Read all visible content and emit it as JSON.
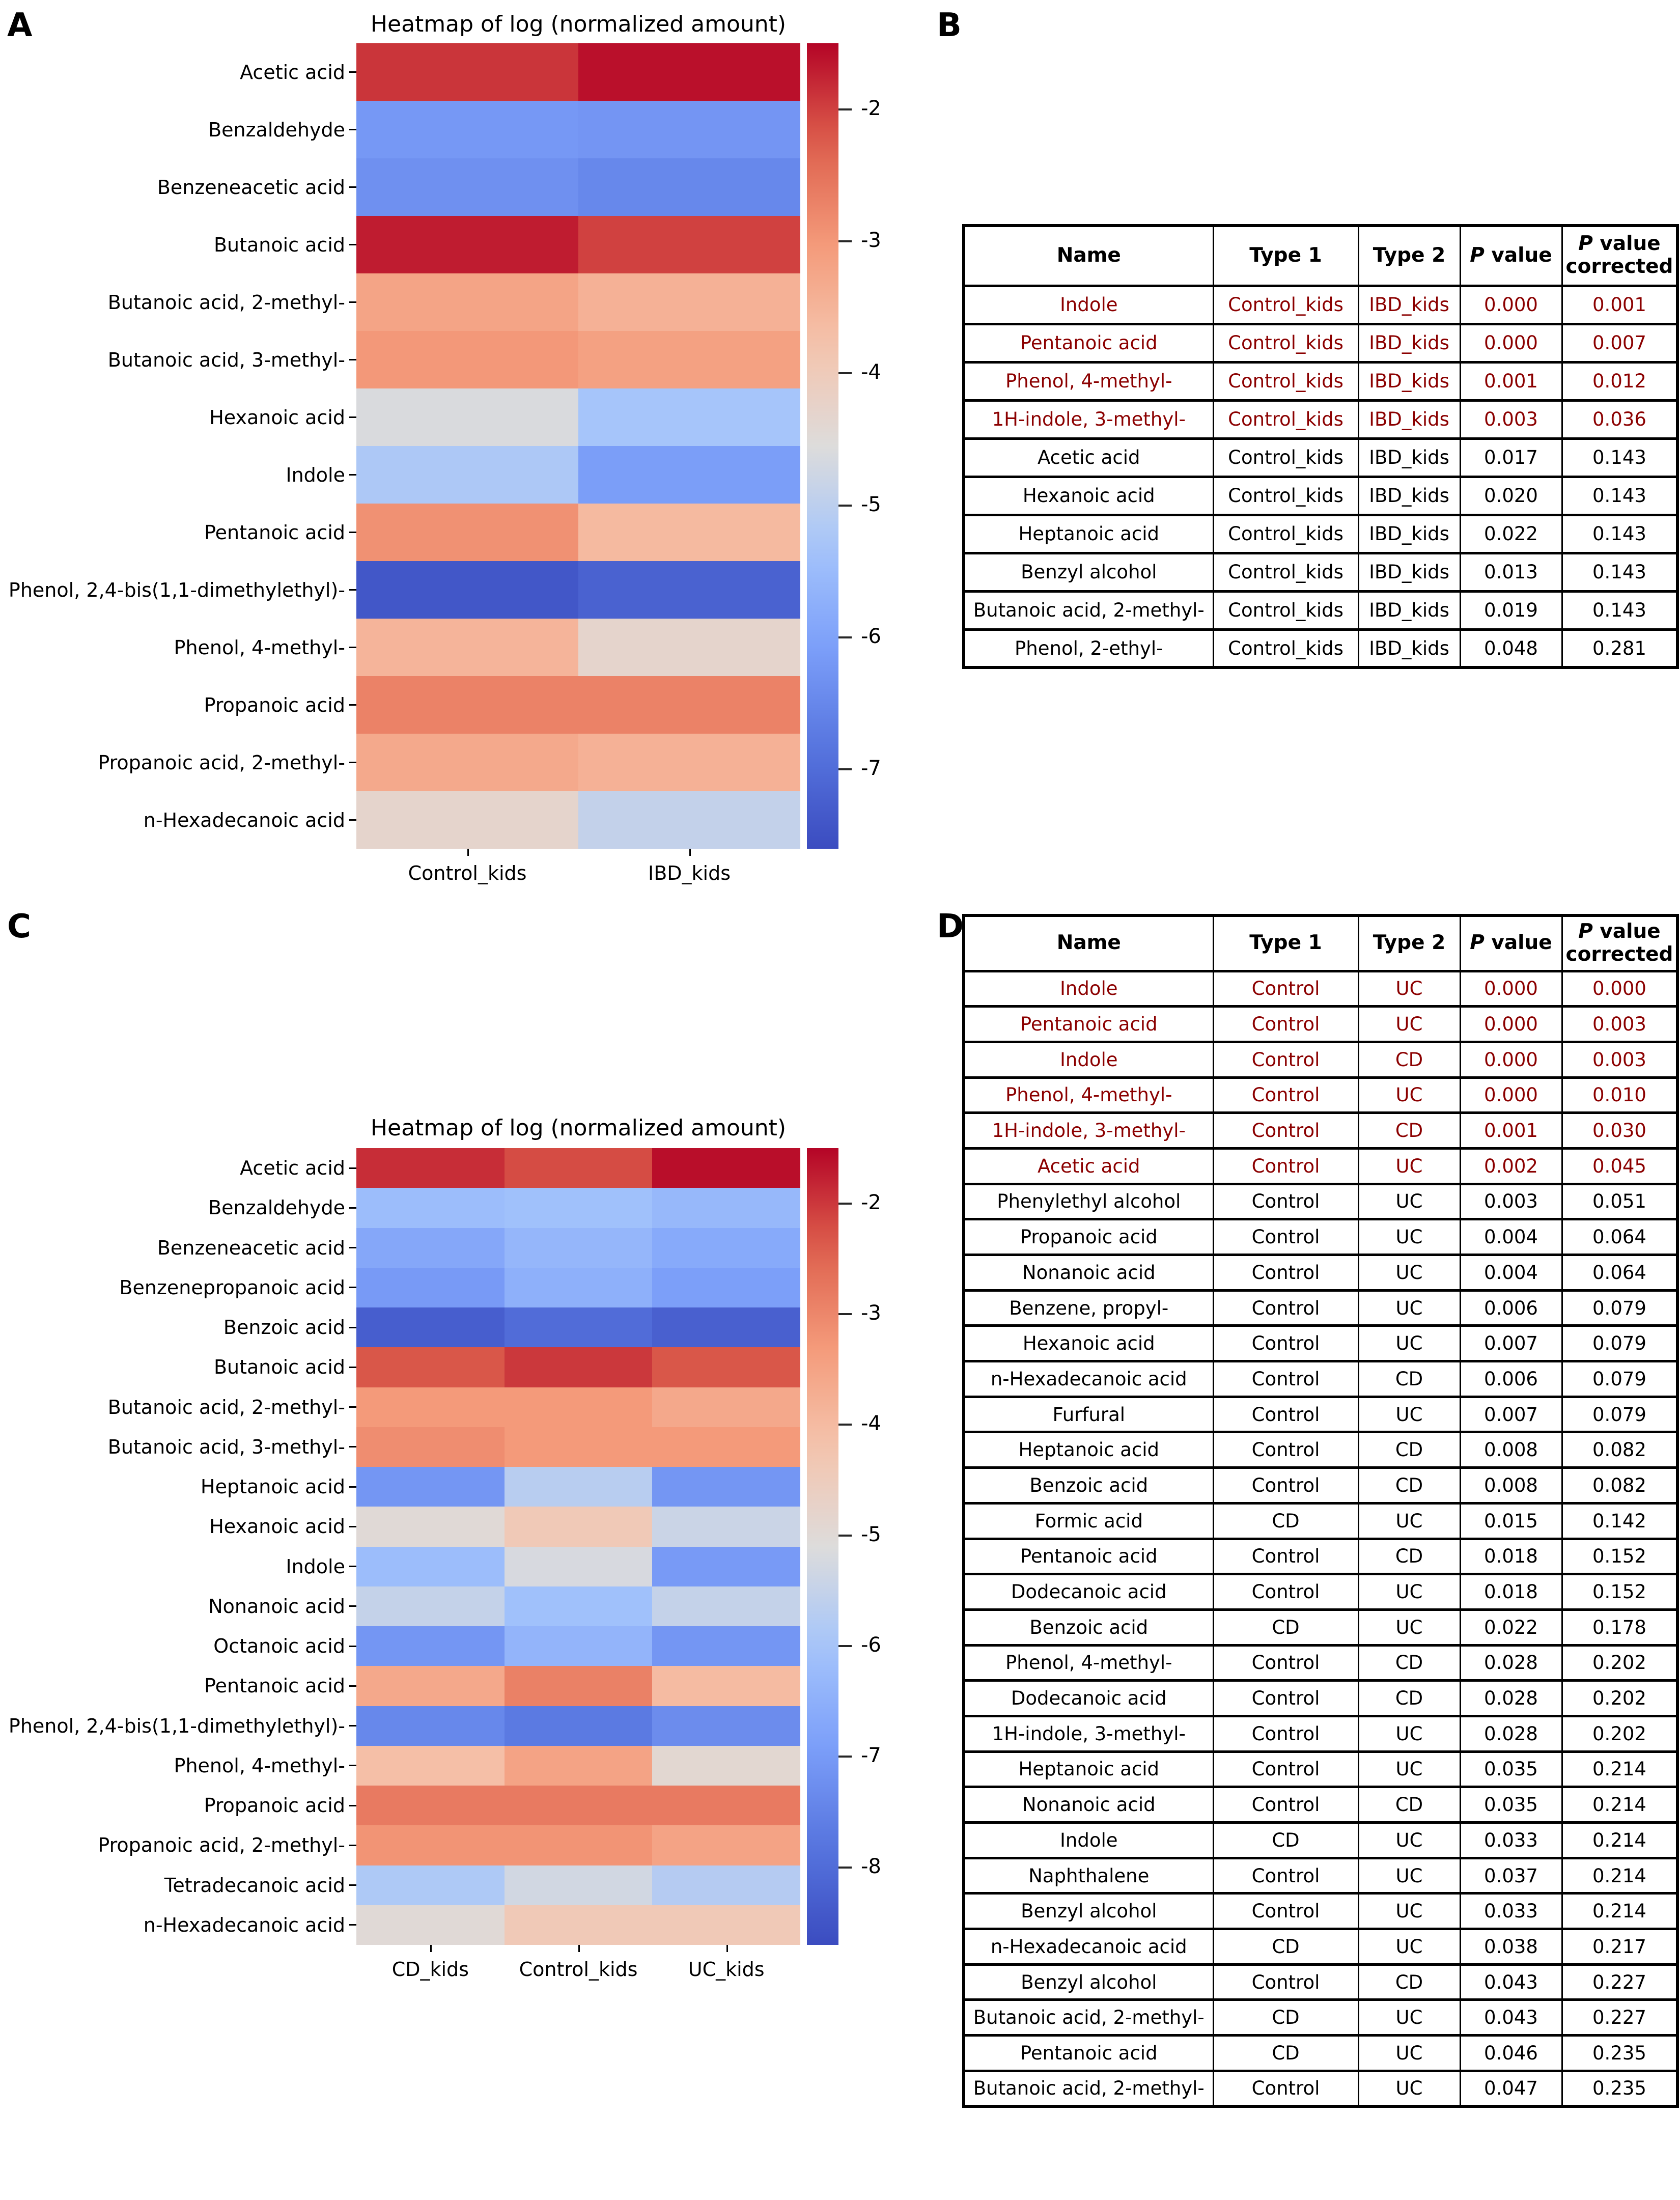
{
  "panels": {
    "A": {
      "letter": "A"
    },
    "B": {
      "letter": "B"
    },
    "C": {
      "letter": "C"
    },
    "D": {
      "letter": "D"
    }
  },
  "colors": {
    "highlight_text": "#8B0000",
    "table_border": "#000000",
    "background": "#ffffff"
  },
  "chart_data": [
    {
      "id": "heatmap-A",
      "panel": "A",
      "type": "heatmap",
      "title": "Heatmap of log (normalized amount)",
      "colormap": "coolwarm",
      "grid": false,
      "columns": [
        "Control_kids",
        "IBD_kids"
      ],
      "vmin": -7.6,
      "vmax": -1.5,
      "colorbar_ticks": [
        -2,
        -3,
        -4,
        -5,
        -6,
        -7
      ],
      "rows": [
        {
          "name": "Acetic acid",
          "values": [
            -1.9,
            -1.6
          ]
        },
        {
          "name": "Benzaldehyde",
          "values": [
            -6.2,
            -6.25
          ]
        },
        {
          "name": "Benzeneacetic acid",
          "values": [
            -6.35,
            -6.5
          ]
        },
        {
          "name": "Butanoic acid",
          "values": [
            -1.7,
            -2.0
          ]
        },
        {
          "name": "Butanoic acid, 2-methyl-",
          "values": [
            -3.2,
            -3.45
          ]
        },
        {
          "name": "Butanoic acid, 3-methyl-",
          "values": [
            -3.0,
            -3.15
          ]
        },
        {
          "name": "Hexanoic acid",
          "values": [
            -4.6,
            -5.3
          ]
        },
        {
          "name": "Indole",
          "values": [
            -5.2,
            -6.1
          ]
        },
        {
          "name": "Pentanoic acid",
          "values": [
            -2.9,
            -3.6
          ]
        },
        {
          "name": "Phenol, 2,4-bis(1,1-dimethylethyl)-",
          "values": [
            -7.4,
            -7.2
          ]
        },
        {
          "name": "Phenol, 4-methyl-",
          "values": [
            -3.5,
            -4.3
          ]
        },
        {
          "name": "Propanoic acid",
          "values": [
            -2.7,
            -2.7
          ]
        },
        {
          "name": "Propanoic acid, 2-methyl-",
          "values": [
            -3.3,
            -3.45
          ]
        },
        {
          "name": "n-Hexadecanoic acid",
          "values": [
            -4.3,
            -4.9
          ]
        }
      ]
    },
    {
      "id": "table-B",
      "panel": "B",
      "type": "table",
      "columns": [
        "Name",
        "Type 1",
        "Type 2",
        "P value",
        "P value corrected"
      ],
      "rows": [
        {
          "highlight": true,
          "cells": [
            "Indole",
            "Control_kids",
            "IBD_kids",
            "0.000",
            "0.001"
          ]
        },
        {
          "highlight": true,
          "cells": [
            "Pentanoic acid",
            "Control_kids",
            "IBD_kids",
            "0.000",
            "0.007"
          ]
        },
        {
          "highlight": true,
          "cells": [
            "Phenol, 4-methyl-",
            "Control_kids",
            "IBD_kids",
            "0.001",
            "0.012"
          ]
        },
        {
          "highlight": true,
          "cells": [
            "1H-indole, 3-methyl-",
            "Control_kids",
            "IBD_kids",
            "0.003",
            "0.036"
          ]
        },
        {
          "highlight": false,
          "cells": [
            "Acetic acid",
            "Control_kids",
            "IBD_kids",
            "0.017",
            "0.143"
          ]
        },
        {
          "highlight": false,
          "cells": [
            "Hexanoic acid",
            "Control_kids",
            "IBD_kids",
            "0.020",
            "0.143"
          ]
        },
        {
          "highlight": false,
          "cells": [
            "Heptanoic acid",
            "Control_kids",
            "IBD_kids",
            "0.022",
            "0.143"
          ]
        },
        {
          "highlight": false,
          "cells": [
            "Benzyl alcohol",
            "Control_kids",
            "IBD_kids",
            "0.013",
            "0.143"
          ]
        },
        {
          "highlight": false,
          "cells": [
            "Butanoic acid, 2-methyl-",
            "Control_kids",
            "IBD_kids",
            "0.019",
            "0.143"
          ]
        },
        {
          "highlight": false,
          "cells": [
            "Phenol, 2-ethyl-",
            "Control_kids",
            "IBD_kids",
            "0.048",
            "0.281"
          ]
        }
      ]
    },
    {
      "id": "heatmap-C",
      "panel": "C",
      "type": "heatmap",
      "title": "Heatmap of log (normalized amount)",
      "colormap": "coolwarm",
      "grid": false,
      "columns": [
        "CD_kids",
        "Control_kids",
        "UC_kids"
      ],
      "vmin": -8.7,
      "vmax": -1.5,
      "colorbar_ticks": [
        -2,
        -3,
        -4,
        -5,
        -6,
        -7,
        -8
      ],
      "rows": [
        {
          "name": "Acetic acid",
          "values": [
            -1.9,
            -2.2,
            -1.6
          ]
        },
        {
          "name": "Benzaldehyde",
          "values": [
            -6.2,
            -6.1,
            -6.3
          ]
        },
        {
          "name": "Benzeneacetic acid",
          "values": [
            -6.7,
            -6.35,
            -6.65
          ]
        },
        {
          "name": "Benzenepropanoic acid",
          "values": [
            -7.0,
            -6.5,
            -6.9
          ]
        },
        {
          "name": "Benzoic acid",
          "values": [
            -8.3,
            -8.0,
            -8.25
          ]
        },
        {
          "name": "Butanoic acid",
          "values": [
            -2.3,
            -2.0,
            -2.3
          ]
        },
        {
          "name": "Butanoic acid, 2-methyl-",
          "values": [
            -3.3,
            -3.3,
            -3.6
          ]
        },
        {
          "name": "Butanoic acid, 3-methyl-",
          "values": [
            -3.1,
            -3.3,
            -3.3
          ]
        },
        {
          "name": "Heptanoic acid",
          "values": [
            -7.1,
            -5.7,
            -7.1
          ]
        },
        {
          "name": "Hexanoic acid",
          "values": [
            -5.0,
            -4.4,
            -5.4
          ]
        },
        {
          "name": "Indole",
          "values": [
            -6.2,
            -5.2,
            -7.0
          ]
        },
        {
          "name": "Nonanoic acid",
          "values": [
            -5.5,
            -6.1,
            -5.5
          ]
        },
        {
          "name": "Octanoic acid",
          "values": [
            -7.1,
            -6.4,
            -7.1
          ]
        },
        {
          "name": "Pentanoic acid",
          "values": [
            -3.6,
            -2.9,
            -4.0
          ]
        },
        {
          "name": "Phenol, 2,4-bis(1,1-dimethylethyl)-",
          "values": [
            -7.4,
            -7.7,
            -7.3
          ]
        },
        {
          "name": "Phenol, 4-methyl-",
          "values": [
            -4.1,
            -3.5,
            -4.9
          ]
        },
        {
          "name": "Propanoic acid",
          "values": [
            -2.8,
            -2.8,
            -2.8
          ]
        },
        {
          "name": "Propanoic acid, 2-methyl-",
          "values": [
            -3.2,
            -3.2,
            -3.5
          ]
        },
        {
          "name": "Tetradecanoic acid",
          "values": [
            -5.85,
            -5.3,
            -5.75
          ]
        },
        {
          "name": "n-Hexadecanoic acid",
          "values": [
            -5.0,
            -4.4,
            -4.4
          ]
        }
      ]
    },
    {
      "id": "table-D",
      "panel": "D",
      "type": "table",
      "columns": [
        "Name",
        "Type 1",
        "Type 2",
        "P value",
        "P value corrected"
      ],
      "rows": [
        {
          "highlight": true,
          "cells": [
            "Indole",
            "Control",
            "UC",
            "0.000",
            "0.000"
          ]
        },
        {
          "highlight": true,
          "cells": [
            "Pentanoic acid",
            "Control",
            "UC",
            "0.000",
            "0.003"
          ]
        },
        {
          "highlight": true,
          "cells": [
            "Indole",
            "Control",
            "CD",
            "0.000",
            "0.003"
          ]
        },
        {
          "highlight": true,
          "cells": [
            "Phenol, 4-methyl-",
            "Control",
            "UC",
            "0.000",
            "0.010"
          ]
        },
        {
          "highlight": true,
          "cells": [
            "1H-indole, 3-methyl-",
            "Control",
            "CD",
            "0.001",
            "0.030"
          ]
        },
        {
          "highlight": true,
          "cells": [
            "Acetic acid",
            "Control",
            "UC",
            "0.002",
            "0.045"
          ]
        },
        {
          "highlight": false,
          "cells": [
            "Phenylethyl alcohol",
            "Control",
            "UC",
            "0.003",
            "0.051"
          ]
        },
        {
          "highlight": false,
          "cells": [
            "Propanoic acid",
            "Control",
            "UC",
            "0.004",
            "0.064"
          ]
        },
        {
          "highlight": false,
          "cells": [
            "Nonanoic acid",
            "Control",
            "UC",
            "0.004",
            "0.064"
          ]
        },
        {
          "highlight": false,
          "cells": [
            "Benzene, propyl-",
            "Control",
            "UC",
            "0.006",
            "0.079"
          ]
        },
        {
          "highlight": false,
          "cells": [
            "Hexanoic acid",
            "Control",
            "UC",
            "0.007",
            "0.079"
          ]
        },
        {
          "highlight": false,
          "cells": [
            "n-Hexadecanoic acid",
            "Control",
            "CD",
            "0.006",
            "0.079"
          ]
        },
        {
          "highlight": false,
          "cells": [
            "Furfural",
            "Control",
            "UC",
            "0.007",
            "0.079"
          ]
        },
        {
          "highlight": false,
          "cells": [
            "Heptanoic acid",
            "Control",
            "CD",
            "0.008",
            "0.082"
          ]
        },
        {
          "highlight": false,
          "cells": [
            "Benzoic acid",
            "Control",
            "CD",
            "0.008",
            "0.082"
          ]
        },
        {
          "highlight": false,
          "cells": [
            "Formic acid",
            "CD",
            "UC",
            "0.015",
            "0.142"
          ]
        },
        {
          "highlight": false,
          "cells": [
            "Pentanoic acid",
            "Control",
            "CD",
            "0.018",
            "0.152"
          ]
        },
        {
          "highlight": false,
          "cells": [
            "Dodecanoic acid",
            "Control",
            "UC",
            "0.018",
            "0.152"
          ]
        },
        {
          "highlight": false,
          "cells": [
            "Benzoic acid",
            "CD",
            "UC",
            "0.022",
            "0.178"
          ]
        },
        {
          "highlight": false,
          "cells": [
            "Phenol, 4-methyl-",
            "Control",
            "CD",
            "0.028",
            "0.202"
          ]
        },
        {
          "highlight": false,
          "cells": [
            "Dodecanoic acid",
            "Control",
            "CD",
            "0.028",
            "0.202"
          ]
        },
        {
          "highlight": false,
          "cells": [
            "1H-indole, 3-methyl-",
            "Control",
            "UC",
            "0.028",
            "0.202"
          ]
        },
        {
          "highlight": false,
          "cells": [
            "Heptanoic acid",
            "Control",
            "UC",
            "0.035",
            "0.214"
          ]
        },
        {
          "highlight": false,
          "cells": [
            "Nonanoic acid",
            "Control",
            "CD",
            "0.035",
            "0.214"
          ]
        },
        {
          "highlight": false,
          "cells": [
            "Indole",
            "CD",
            "UC",
            "0.033",
            "0.214"
          ]
        },
        {
          "highlight": false,
          "cells": [
            "Naphthalene",
            "Control",
            "UC",
            "0.037",
            "0.214"
          ]
        },
        {
          "highlight": false,
          "cells": [
            "Benzyl alcohol",
            "Control",
            "UC",
            "0.033",
            "0.214"
          ]
        },
        {
          "highlight": false,
          "cells": [
            "n-Hexadecanoic acid",
            "CD",
            "UC",
            "0.038",
            "0.217"
          ]
        },
        {
          "highlight": false,
          "cells": [
            "Benzyl alcohol",
            "Control",
            "CD",
            "0.043",
            "0.227"
          ]
        },
        {
          "highlight": false,
          "cells": [
            "Butanoic acid, 2-methyl-",
            "CD",
            "UC",
            "0.043",
            "0.227"
          ]
        },
        {
          "highlight": false,
          "cells": [
            "Pentanoic acid",
            "CD",
            "UC",
            "0.046",
            "0.235"
          ]
        },
        {
          "highlight": false,
          "cells": [
            "Butanoic acid, 2-methyl-",
            "Control",
            "UC",
            "0.047",
            "0.235"
          ]
        }
      ]
    }
  ]
}
